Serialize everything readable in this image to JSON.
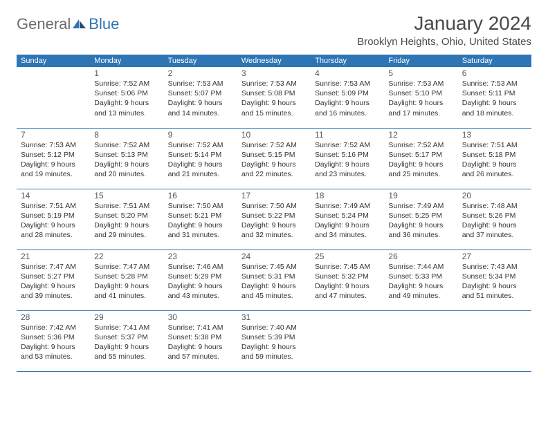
{
  "brand": {
    "general": "General",
    "blue": "Blue"
  },
  "title": "January 2024",
  "location": "Brooklyn Heights, Ohio, United States",
  "colors": {
    "accent": "#2e75b6",
    "text_dark": "#4a4a4a",
    "text_body": "#333333"
  },
  "day_headers": [
    "Sunday",
    "Monday",
    "Tuesday",
    "Wednesday",
    "Thursday",
    "Friday",
    "Saturday"
  ],
  "weeks": [
    [
      null,
      {
        "date": "1",
        "sunrise": "Sunrise: 7:52 AM",
        "sunset": "Sunset: 5:06 PM",
        "day1": "Daylight: 9 hours",
        "day2": "and 13 minutes."
      },
      {
        "date": "2",
        "sunrise": "Sunrise: 7:53 AM",
        "sunset": "Sunset: 5:07 PM",
        "day1": "Daylight: 9 hours",
        "day2": "and 14 minutes."
      },
      {
        "date": "3",
        "sunrise": "Sunrise: 7:53 AM",
        "sunset": "Sunset: 5:08 PM",
        "day1": "Daylight: 9 hours",
        "day2": "and 15 minutes."
      },
      {
        "date": "4",
        "sunrise": "Sunrise: 7:53 AM",
        "sunset": "Sunset: 5:09 PM",
        "day1": "Daylight: 9 hours",
        "day2": "and 16 minutes."
      },
      {
        "date": "5",
        "sunrise": "Sunrise: 7:53 AM",
        "sunset": "Sunset: 5:10 PM",
        "day1": "Daylight: 9 hours",
        "day2": "and 17 minutes."
      },
      {
        "date": "6",
        "sunrise": "Sunrise: 7:53 AM",
        "sunset": "Sunset: 5:11 PM",
        "day1": "Daylight: 9 hours",
        "day2": "and 18 minutes."
      }
    ],
    [
      {
        "date": "7",
        "sunrise": "Sunrise: 7:53 AM",
        "sunset": "Sunset: 5:12 PM",
        "day1": "Daylight: 9 hours",
        "day2": "and 19 minutes."
      },
      {
        "date": "8",
        "sunrise": "Sunrise: 7:52 AM",
        "sunset": "Sunset: 5:13 PM",
        "day1": "Daylight: 9 hours",
        "day2": "and 20 minutes."
      },
      {
        "date": "9",
        "sunrise": "Sunrise: 7:52 AM",
        "sunset": "Sunset: 5:14 PM",
        "day1": "Daylight: 9 hours",
        "day2": "and 21 minutes."
      },
      {
        "date": "10",
        "sunrise": "Sunrise: 7:52 AM",
        "sunset": "Sunset: 5:15 PM",
        "day1": "Daylight: 9 hours",
        "day2": "and 22 minutes."
      },
      {
        "date": "11",
        "sunrise": "Sunrise: 7:52 AM",
        "sunset": "Sunset: 5:16 PM",
        "day1": "Daylight: 9 hours",
        "day2": "and 23 minutes."
      },
      {
        "date": "12",
        "sunrise": "Sunrise: 7:52 AM",
        "sunset": "Sunset: 5:17 PM",
        "day1": "Daylight: 9 hours",
        "day2": "and 25 minutes."
      },
      {
        "date": "13",
        "sunrise": "Sunrise: 7:51 AM",
        "sunset": "Sunset: 5:18 PM",
        "day1": "Daylight: 9 hours",
        "day2": "and 26 minutes."
      }
    ],
    [
      {
        "date": "14",
        "sunrise": "Sunrise: 7:51 AM",
        "sunset": "Sunset: 5:19 PM",
        "day1": "Daylight: 9 hours",
        "day2": "and 28 minutes."
      },
      {
        "date": "15",
        "sunrise": "Sunrise: 7:51 AM",
        "sunset": "Sunset: 5:20 PM",
        "day1": "Daylight: 9 hours",
        "day2": "and 29 minutes."
      },
      {
        "date": "16",
        "sunrise": "Sunrise: 7:50 AM",
        "sunset": "Sunset: 5:21 PM",
        "day1": "Daylight: 9 hours",
        "day2": "and 31 minutes."
      },
      {
        "date": "17",
        "sunrise": "Sunrise: 7:50 AM",
        "sunset": "Sunset: 5:22 PM",
        "day1": "Daylight: 9 hours",
        "day2": "and 32 minutes."
      },
      {
        "date": "18",
        "sunrise": "Sunrise: 7:49 AM",
        "sunset": "Sunset: 5:24 PM",
        "day1": "Daylight: 9 hours",
        "day2": "and 34 minutes."
      },
      {
        "date": "19",
        "sunrise": "Sunrise: 7:49 AM",
        "sunset": "Sunset: 5:25 PM",
        "day1": "Daylight: 9 hours",
        "day2": "and 36 minutes."
      },
      {
        "date": "20",
        "sunrise": "Sunrise: 7:48 AM",
        "sunset": "Sunset: 5:26 PM",
        "day1": "Daylight: 9 hours",
        "day2": "and 37 minutes."
      }
    ],
    [
      {
        "date": "21",
        "sunrise": "Sunrise: 7:47 AM",
        "sunset": "Sunset: 5:27 PM",
        "day1": "Daylight: 9 hours",
        "day2": "and 39 minutes."
      },
      {
        "date": "22",
        "sunrise": "Sunrise: 7:47 AM",
        "sunset": "Sunset: 5:28 PM",
        "day1": "Daylight: 9 hours",
        "day2": "and 41 minutes."
      },
      {
        "date": "23",
        "sunrise": "Sunrise: 7:46 AM",
        "sunset": "Sunset: 5:29 PM",
        "day1": "Daylight: 9 hours",
        "day2": "and 43 minutes."
      },
      {
        "date": "24",
        "sunrise": "Sunrise: 7:45 AM",
        "sunset": "Sunset: 5:31 PM",
        "day1": "Daylight: 9 hours",
        "day2": "and 45 minutes."
      },
      {
        "date": "25",
        "sunrise": "Sunrise: 7:45 AM",
        "sunset": "Sunset: 5:32 PM",
        "day1": "Daylight: 9 hours",
        "day2": "and 47 minutes."
      },
      {
        "date": "26",
        "sunrise": "Sunrise: 7:44 AM",
        "sunset": "Sunset: 5:33 PM",
        "day1": "Daylight: 9 hours",
        "day2": "and 49 minutes."
      },
      {
        "date": "27",
        "sunrise": "Sunrise: 7:43 AM",
        "sunset": "Sunset: 5:34 PM",
        "day1": "Daylight: 9 hours",
        "day2": "and 51 minutes."
      }
    ],
    [
      {
        "date": "28",
        "sunrise": "Sunrise: 7:42 AM",
        "sunset": "Sunset: 5:36 PM",
        "day1": "Daylight: 9 hours",
        "day2": "and 53 minutes."
      },
      {
        "date": "29",
        "sunrise": "Sunrise: 7:41 AM",
        "sunset": "Sunset: 5:37 PM",
        "day1": "Daylight: 9 hours",
        "day2": "and 55 minutes."
      },
      {
        "date": "30",
        "sunrise": "Sunrise: 7:41 AM",
        "sunset": "Sunset: 5:38 PM",
        "day1": "Daylight: 9 hours",
        "day2": "and 57 minutes."
      },
      {
        "date": "31",
        "sunrise": "Sunrise: 7:40 AM",
        "sunset": "Sunset: 5:39 PM",
        "day1": "Daylight: 9 hours",
        "day2": "and 59 minutes."
      },
      null,
      null,
      null
    ]
  ]
}
